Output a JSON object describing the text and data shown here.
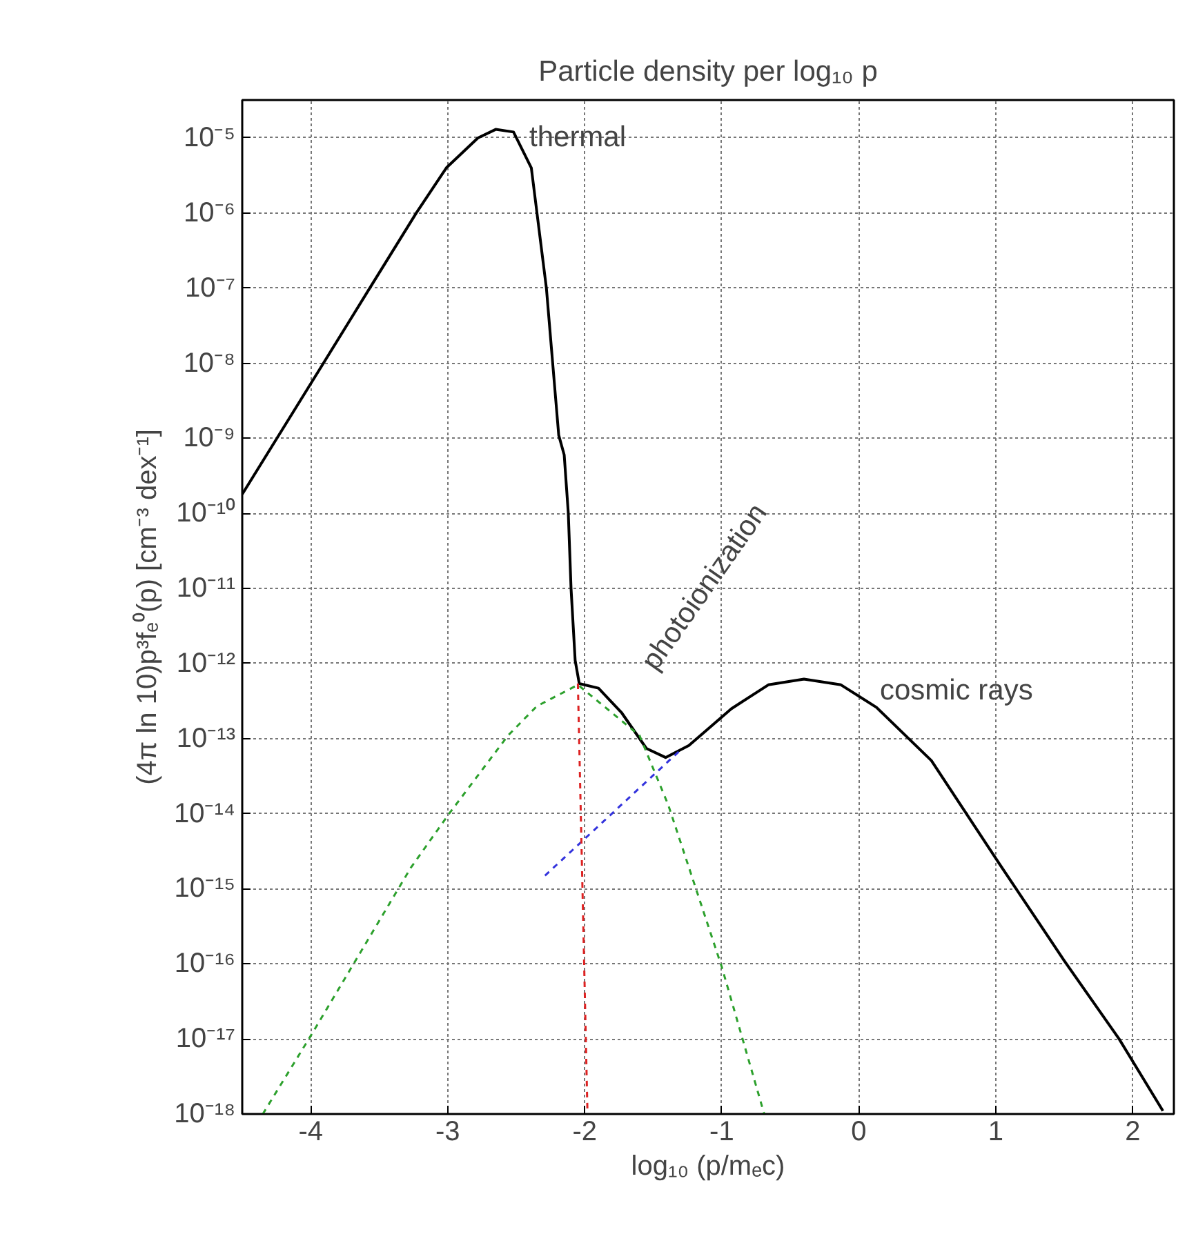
{
  "chart_data": {
    "type": "line",
    "title": "Particle density per log₁₀ p",
    "xlabel": "log₁₀ (p/mₑc)",
    "ylabel": "(4π ln 10)p³fₑ⁰(p) [cm⁻³ dex⁻¹]",
    "log": "y",
    "grid": true,
    "xlim": [
      -4.5,
      2.3
    ],
    "xticks": [
      -4,
      -3,
      -2,
      -1,
      0,
      1,
      2
    ],
    "ylim": [
      1e-18,
      3.2e-05
    ],
    "yticks": [
      {
        "value": 1e-05,
        "label": "10⁻⁵"
      },
      {
        "value": 1e-06,
        "label": "10⁻⁶"
      },
      {
        "value": 1e-07,
        "label": "10⁻⁷"
      },
      {
        "value": 1e-08,
        "label": "10⁻⁸"
      },
      {
        "value": 1e-09,
        "label": "10⁻⁹"
      },
      {
        "value": 1e-10,
        "label": "10⁻¹⁰"
      },
      {
        "value": 1e-11,
        "label": "10⁻¹¹"
      },
      {
        "value": 1e-12,
        "label": "10⁻¹²"
      },
      {
        "value": 1e-13,
        "label": "10⁻¹³"
      },
      {
        "value": 1e-14,
        "label": "10⁻¹⁴"
      },
      {
        "value": 1e-15,
        "label": "10⁻¹⁵"
      },
      {
        "value": 1e-16,
        "label": "10⁻¹⁶"
      },
      {
        "value": 1e-17,
        "label": "10⁻¹⁷"
      },
      {
        "value": 1e-18,
        "label": "10⁻¹⁸"
      }
    ],
    "series": [
      {
        "color": "#000000",
        "line_style": "solid",
        "x": [
          -4.5,
          -3.915,
          -3.58,
          -3.23,
          -3.01,
          -2.78,
          -2.65,
          -2.52,
          -2.39,
          -2.28,
          -2.19,
          -2.15,
          -2.12,
          -2.1,
          -2.07,
          -2.04,
          -1.9,
          -1.73,
          -1.55,
          -1.41,
          -1.24,
          -0.93,
          -0.66,
          -0.4,
          -0.13,
          0.13,
          0.53,
          1.03,
          1.5,
          1.9,
          2.22
        ],
        "values": [
          1.8e-10,
          9.5e-09,
          9.3e-08,
          1e-06,
          4e-06,
          1e-05,
          1.3e-05,
          1.2e-05,
          4e-06,
          1e-07,
          1.1e-09,
          6e-10,
          1e-10,
          1e-11,
          1.1e-12,
          5.4e-13,
          4.7e-13,
          2.2e-13,
          7.4e-14,
          5.6e-14,
          8.1e-14,
          2.5e-13,
          5.2e-13,
          6.2e-13,
          5.2e-13,
          2.6e-13,
          5.1e-14,
          2.1e-15,
          1.1e-16,
          1e-17,
          1.1e-18
        ]
      },
      {
        "color": "#2ca02c",
        "line_style": "dashed",
        "x": [
          -4.35,
          -4.0,
          -3.27,
          -2.99,
          -2.56,
          -2.35,
          -2.05,
          -1.6,
          -1.39,
          -1.0,
          -0.69
        ],
        "values": [
          1e-18,
          1.1e-17,
          1.9e-15,
          1e-14,
          1.1e-13,
          2.7e-13,
          5.2e-13,
          1.1e-13,
          1.3e-14,
          9.1e-17,
          1e-18
        ]
      },
      {
        "color": "#3333dd",
        "line_style": "dashed",
        "x": [
          -2.29,
          -1.31
        ],
        "values": [
          1.5e-15,
          6.8e-14
        ]
      },
      {
        "color": "#dd2222",
        "line_style": "dashed",
        "x": [
          -2.05,
          -1.98
        ],
        "values": [
          5.4e-13,
          1e-18
        ]
      }
    ],
    "annotations": [
      "thermal",
      "photoionization",
      "cosmic rays"
    ]
  }
}
